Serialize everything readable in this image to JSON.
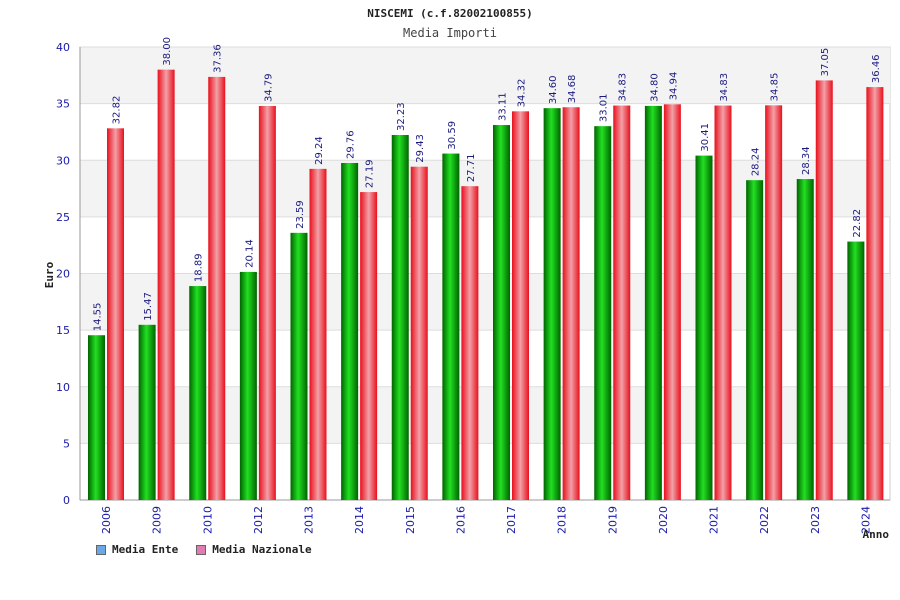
{
  "chart_data": {
    "type": "bar",
    "title": "NISCEMI (c.f.82002100855)",
    "subtitle": "Media Importi",
    "xlabel": "Anno",
    "ylabel": "Euro",
    "ylim": [
      0,
      40
    ],
    "yticks": [
      0,
      5,
      10,
      15,
      20,
      25,
      30,
      35,
      40
    ],
    "grid": true,
    "categories": [
      "2006",
      "2009",
      "2010",
      "2012",
      "2013",
      "2014",
      "2015",
      "2016",
      "2017",
      "2018",
      "2019",
      "2020",
      "2021",
      "2022",
      "2023",
      "2024"
    ],
    "series": [
      {
        "name": "Media Ente",
        "color": "#00b000",
        "legend_color": "#6aa8e8",
        "values": [
          14.55,
          15.47,
          18.89,
          20.14,
          23.59,
          29.76,
          32.23,
          30.59,
          33.11,
          34.6,
          33.01,
          34.8,
          30.41,
          28.24,
          28.34,
          22.82
        ],
        "labels": [
          "14.55",
          "15.47",
          "18.89",
          "20.14",
          "23.59",
          "29.76",
          "32.23",
          "30.59",
          "33.11",
          "34.60",
          "33.01",
          "34.80",
          "30.41",
          "28.24",
          "28.34",
          "22.82"
        ]
      },
      {
        "name": "Media Nazionale",
        "color": "#e8101c",
        "legend_color": "#e07cb0",
        "values": [
          32.82,
          38.0,
          37.36,
          34.79,
          29.24,
          27.19,
          29.43,
          27.71,
          34.32,
          34.68,
          34.83,
          34.94,
          34.83,
          34.85,
          37.05,
          36.46
        ],
        "labels": [
          "32.82",
          "38.00",
          "37.36",
          "34.79",
          "29.24",
          "27.19",
          "29.43",
          "27.71",
          "34.32",
          "34.68",
          "34.83",
          "34.94",
          "34.83",
          "34.85",
          "37.05",
          "36.46"
        ]
      }
    ],
    "legend_position": "bottom-left"
  }
}
